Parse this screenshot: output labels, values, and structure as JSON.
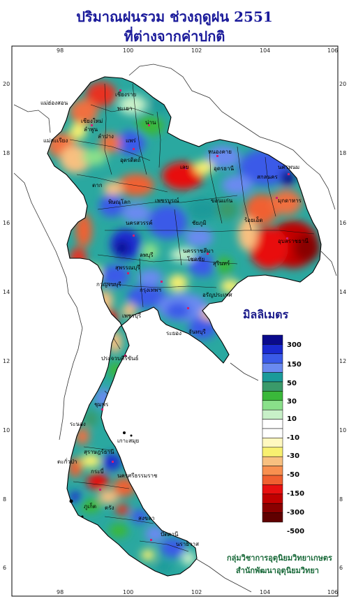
{
  "title_line1": "ปริมาณฝนรวม ช่วงฤดูฝน 2551",
  "title_line2": "ที่ต่างจากค่าปกติ",
  "unit_label": "มิลลิเมตร",
  "lon_ticks": [
    "98",
    "100",
    "102",
    "104",
    "106"
  ],
  "lat_ticks": [
    "20",
    "18",
    "16",
    "14",
    "12",
    "10",
    "8",
    "6"
  ],
  "legend": {
    "labels": [
      "300",
      "150",
      "50",
      "30",
      "10",
      "-10",
      "-30",
      "-50",
      "-150",
      "-300",
      "-500"
    ],
    "colors": [
      "#0a0a8c",
      "#1a2ad0",
      "#3a5ae8",
      "#6a8af0",
      "#1a9a9a",
      "#3a9a6a",
      "#3ab83a",
      "#8ae08a",
      "#c8f0c8",
      "#ffffff",
      "#ffffff",
      "#fff8c0",
      "#f8f070",
      "#f8c080",
      "#f89050",
      "#f06030",
      "#e81010",
      "#c00000",
      "#8a0000",
      "#600000"
    ]
  },
  "places": {
    "chiang_rai_city": "เชียงราย",
    "mae_hong_son": "แม่ฮ่องสอน",
    "chiang_mai": "เชียงใหม่",
    "lamphun": "ลำพูน",
    "phayao": "พะเยา",
    "nan": "น่าน",
    "lampang": "ลำปาง",
    "phrae": "แพร่",
    "uttaradit": "อุตรดิตถ์",
    "mae_sariang": "แม่สะเรียง",
    "tak": "ตาก",
    "loei": "เลย",
    "nong_khai": "หนองคาย",
    "udon_thani": "อุดรธานี",
    "nakhon_phanom": "นครพนม",
    "sakon_nakhon": "สกลนคร",
    "mukdahan": "มุกดาหาร",
    "khon_kaen": "ขอนแก่น",
    "phitsanulok": "พิษณุโลก",
    "phetchabun": "เพชรบูรณ์",
    "nakhon_sawan": "นครสวรรค์",
    "chaiyaphum": "ชัยภูมิ",
    "roi_et": "ร้อยเอ็ด",
    "ubon": "อุบลราชธานี",
    "lop_buri": "ลพบุรี",
    "nakhon_ratchasima": "นครราชสีมา",
    "surin": "สุรินทร์",
    "chok_chai": "โชคชัย",
    "kanchanaburi": "กาญจนบุรี",
    "suphan_buri": "สุพรรณบุรี",
    "bangkok": "กรุงเทพฯ",
    "aranyaprathet": "อรัญประเทศ",
    "phetchaburi": "เพชรบุรี",
    "chanthaburi": "จันทบุรี",
    "rayong": "ระยอง",
    "prachuap": "ประจวบคีรีขันธ์",
    "chumphon": "ชุมพร",
    "ranong": "ระนอง",
    "ko_samui": "เกาะสมุย",
    "surat_thani": "สุราษฎร์ธานี",
    "takua_pa": "ตะกั่วป่า",
    "nakhon_si": "นครศรีธรรมราช",
    "phuket": "ภูเก็ต",
    "krabi": "กระบี่",
    "trang": "ตรัง",
    "songkhla": "สงขลา",
    "pattani": "ปัตตานี",
    "narathiwat": "นราธิวาส"
  },
  "credit_line1": "กลุ่มวิชาการอุตุนิยมวิทยาเกษตร",
  "credit_line2": "สำนักพัฒนาอุตุนิยมวิทยา"
}
